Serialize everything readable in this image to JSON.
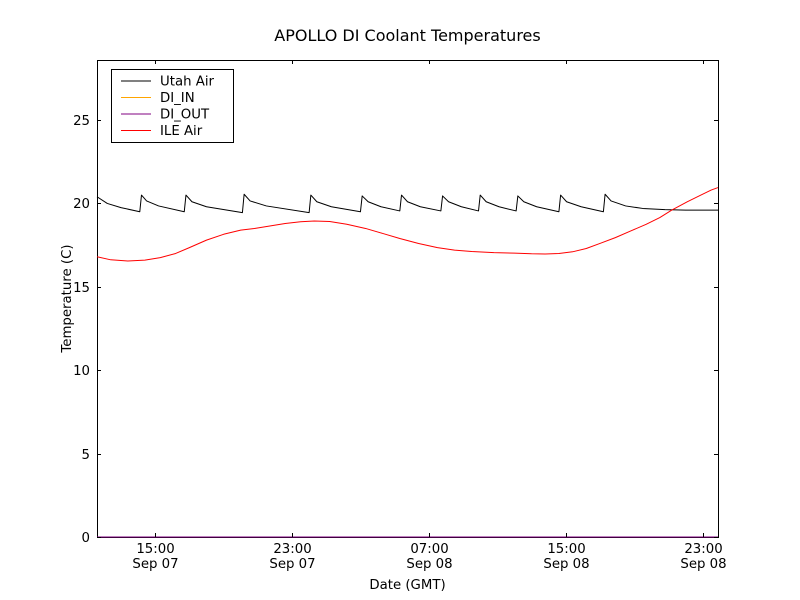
{
  "chart_data": {
    "type": "line",
    "title": "APOLLO DI Coolant Temperatures",
    "xlabel": "Date (GMT)",
    "ylabel": "Temperature (C)",
    "x_unit": "hours since Sep 07 00:00 GMT",
    "xlim": [
      11.6,
      47.9
    ],
    "ylim": [
      0,
      28.6
    ],
    "grid": false,
    "y_ticks": [
      0,
      5,
      10,
      15,
      20,
      25
    ],
    "x_ticks": [
      {
        "hour": 15,
        "time": "15:00",
        "date": "Sep 07"
      },
      {
        "hour": 23,
        "time": "23:00",
        "date": "Sep 07"
      },
      {
        "hour": 31,
        "time": "07:00",
        "date": "Sep 08"
      },
      {
        "hour": 39,
        "time": "15:00",
        "date": "Sep 08"
      },
      {
        "hour": 47,
        "time": "23:00",
        "date": "Sep 08"
      }
    ],
    "legend": {
      "position": "upper left",
      "entries": [
        "Utah Air",
        "DI_IN",
        "DI_OUT",
        "ILE Air"
      ]
    },
    "series": [
      {
        "name": "Utah Air",
        "color": "#000000",
        "points": [
          [
            11.6,
            20.4
          ],
          [
            12.2,
            20.0
          ],
          [
            13.0,
            19.75
          ],
          [
            14.1,
            19.5
          ],
          [
            14.2,
            20.5
          ],
          [
            14.5,
            20.15
          ],
          [
            15.2,
            19.85
          ],
          [
            16.7,
            19.5
          ],
          [
            16.8,
            20.5
          ],
          [
            17.15,
            20.1
          ],
          [
            18.0,
            19.8
          ],
          [
            20.1,
            19.45
          ],
          [
            20.2,
            20.55
          ],
          [
            20.55,
            20.15
          ],
          [
            21.5,
            19.85
          ],
          [
            24.0,
            19.45
          ],
          [
            24.1,
            20.5
          ],
          [
            24.45,
            20.1
          ],
          [
            25.3,
            19.8
          ],
          [
            27.0,
            19.5
          ],
          [
            27.1,
            20.45
          ],
          [
            27.45,
            20.1
          ],
          [
            28.2,
            19.8
          ],
          [
            29.3,
            19.55
          ],
          [
            29.4,
            20.5
          ],
          [
            29.75,
            20.1
          ],
          [
            30.5,
            19.8
          ],
          [
            31.7,
            19.55
          ],
          [
            31.8,
            20.45
          ],
          [
            32.15,
            20.1
          ],
          [
            32.9,
            19.8
          ],
          [
            33.9,
            19.55
          ],
          [
            34.0,
            20.5
          ],
          [
            34.35,
            20.1
          ],
          [
            35.1,
            19.8
          ],
          [
            36.1,
            19.55
          ],
          [
            36.2,
            20.45
          ],
          [
            36.55,
            20.1
          ],
          [
            37.3,
            19.8
          ],
          [
            38.6,
            19.5
          ],
          [
            38.7,
            20.5
          ],
          [
            39.05,
            20.1
          ],
          [
            39.9,
            19.8
          ],
          [
            41.2,
            19.5
          ],
          [
            41.3,
            20.55
          ],
          [
            41.65,
            20.15
          ],
          [
            42.5,
            19.85
          ],
          [
            43.5,
            19.7
          ],
          [
            44.8,
            19.63
          ],
          [
            46.0,
            19.6
          ],
          [
            47.9,
            19.6
          ]
        ]
      },
      {
        "name": "DI_IN",
        "color": "#ffa500",
        "points": [
          [
            11.6,
            0
          ],
          [
            47.9,
            0
          ]
        ]
      },
      {
        "name": "DI_OUT",
        "color": "#800080",
        "points": [
          [
            11.6,
            0
          ],
          [
            47.9,
            0
          ]
        ]
      },
      {
        "name": "ILE Air",
        "color": "#ff0000",
        "points": [
          [
            11.6,
            16.8
          ],
          [
            12.4,
            16.62
          ],
          [
            13.4,
            16.55
          ],
          [
            14.4,
            16.6
          ],
          [
            15.3,
            16.75
          ],
          [
            16.2,
            17.0
          ],
          [
            17.0,
            17.35
          ],
          [
            18.0,
            17.8
          ],
          [
            19.0,
            18.15
          ],
          [
            20.0,
            18.4
          ],
          [
            20.8,
            18.5
          ],
          [
            21.7,
            18.65
          ],
          [
            22.6,
            18.8
          ],
          [
            23.5,
            18.9
          ],
          [
            24.3,
            18.95
          ],
          [
            25.2,
            18.92
          ],
          [
            26.2,
            18.75
          ],
          [
            27.3,
            18.5
          ],
          [
            28.3,
            18.2
          ],
          [
            29.3,
            17.9
          ],
          [
            30.4,
            17.6
          ],
          [
            31.5,
            17.35
          ],
          [
            32.5,
            17.2
          ],
          [
            33.5,
            17.12
          ],
          [
            34.8,
            17.05
          ],
          [
            36.0,
            17.02
          ],
          [
            37.0,
            16.98
          ],
          [
            37.8,
            16.97
          ],
          [
            38.6,
            17.0
          ],
          [
            39.4,
            17.1
          ],
          [
            40.2,
            17.3
          ],
          [
            41.0,
            17.6
          ],
          [
            41.9,
            17.95
          ],
          [
            42.8,
            18.35
          ],
          [
            43.7,
            18.75
          ],
          [
            44.5,
            19.15
          ],
          [
            45.2,
            19.6
          ],
          [
            46.1,
            20.1
          ],
          [
            46.9,
            20.5
          ],
          [
            47.5,
            20.8
          ],
          [
            47.9,
            20.95
          ]
        ]
      }
    ]
  }
}
